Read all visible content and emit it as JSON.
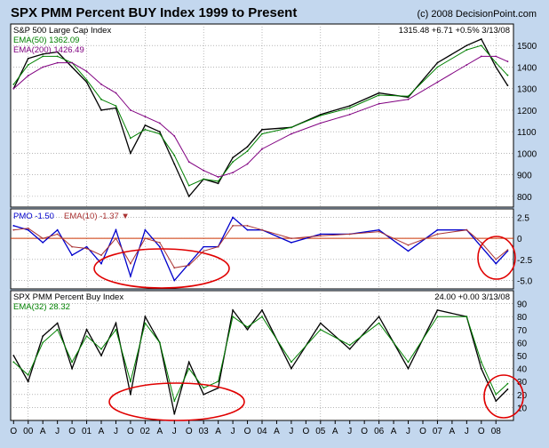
{
  "header": {
    "title": "SPX PMM Percent BUY Index 1999 to Present",
    "copyright": "(c) 2008 DecisionPoint.com"
  },
  "x_axis_labels": [
    "O",
    "00",
    "A",
    "J",
    "O",
    "01",
    "A",
    "J",
    "O",
    "02",
    "A",
    "J",
    "O",
    "03",
    "A",
    "J",
    "O",
    "04",
    "A",
    "J",
    "O",
    "05",
    "A",
    "J",
    "O",
    "06",
    "A",
    "J",
    "O",
    "07",
    "A",
    "J",
    "O",
    "08"
  ],
  "colors": {
    "background": "#c3d7ee",
    "panel": "#ffffff",
    "grid": "#8c8c8c",
    "price": "#000000",
    "ema_short": "#008000",
    "ema_long": "#800080",
    "pmo": "#0000cc",
    "ema_pmo": "#aa3333",
    "zero_line": "#cc3300",
    "circle": "#e00000"
  },
  "chart_data": [
    {
      "type": "line",
      "title": "S&P 500 Large Cap Index",
      "readout": "1315.48  +6.71  +0.5%  3/13/08",
      "ylim": [
        750,
        1600
      ],
      "y_ticks": [
        800,
        900,
        1000,
        1100,
        1200,
        1300,
        1400,
        1500
      ],
      "x": [
        1999.75,
        2000.0,
        2000.25,
        2000.5,
        2000.75,
        2001.0,
        2001.25,
        2001.5,
        2001.75,
        2002.0,
        2002.25,
        2002.5,
        2002.75,
        2003.0,
        2003.25,
        2003.5,
        2003.75,
        2004.0,
        2004.5,
        2005.0,
        2005.5,
        2006.0,
        2006.5,
        2007.0,
        2007.5,
        2007.75,
        2008.0,
        2008.2
      ],
      "series": [
        {
          "name": "",
          "values": [
            1300,
            1440,
            1460,
            1470,
            1400,
            1330,
            1200,
            1210,
            1000,
            1130,
            1100,
            950,
            800,
            880,
            860,
            980,
            1030,
            1110,
            1120,
            1180,
            1220,
            1280,
            1260,
            1420,
            1500,
            1530,
            1400,
            1315
          ]
        },
        {
          "name": "EMA(50) 1362.09",
          "values": [
            1320,
            1410,
            1450,
            1450,
            1420,
            1340,
            1250,
            1220,
            1070,
            1110,
            1090,
            990,
            850,
            880,
            870,
            960,
            1010,
            1090,
            1120,
            1175,
            1210,
            1270,
            1265,
            1400,
            1480,
            1500,
            1420,
            1362
          ]
        },
        {
          "name": "EMA(200) 1426.49",
          "values": [
            1300,
            1360,
            1400,
            1420,
            1420,
            1380,
            1320,
            1280,
            1200,
            1170,
            1140,
            1080,
            960,
            920,
            890,
            910,
            950,
            1020,
            1090,
            1140,
            1180,
            1230,
            1250,
            1330,
            1410,
            1450,
            1450,
            1426
          ]
        }
      ]
    },
    {
      "type": "line",
      "ylim": [
        -6,
        3.5
      ],
      "y_ticks": [
        2.5,
        0,
        -2.5,
        -5.0
      ],
      "y_tick_labels": [
        "2.5",
        "0",
        "-2.5",
        "-5.0"
      ],
      "x": [
        1999.75,
        2000.0,
        2000.25,
        2000.5,
        2000.75,
        2001.0,
        2001.25,
        2001.5,
        2001.75,
        2002.0,
        2002.25,
        2002.5,
        2002.75,
        2003.0,
        2003.25,
        2003.5,
        2003.75,
        2004.0,
        2004.5,
        2005.0,
        2005.5,
        2006.0,
        2006.5,
        2007.0,
        2007.5,
        2007.75,
        2008.0,
        2008.2
      ],
      "series": [
        {
          "name": "PMO -1.50",
          "values": [
            1.5,
            1.0,
            -0.5,
            1.0,
            -2.0,
            -1.0,
            -3.0,
            1.0,
            -4.5,
            1.0,
            -1.0,
            -5.0,
            -3.0,
            -1.0,
            -1.0,
            2.5,
            1.0,
            1.0,
            -0.5,
            0.5,
            0.5,
            1.0,
            -1.5,
            1.0,
            1.0,
            -1.0,
            -3.0,
            -1.5
          ]
        },
        {
          "name": "EMA(10) -1.37",
          "values": [
            1.0,
            1.2,
            0.0,
            0.5,
            -1.0,
            -1.2,
            -2.0,
            0.0,
            -3.0,
            0.0,
            -0.5,
            -3.5,
            -3.2,
            -1.5,
            -1.0,
            1.5,
            1.5,
            1.0,
            0.0,
            0.3,
            0.5,
            0.8,
            -0.8,
            0.5,
            1.0,
            -0.5,
            -2.5,
            -1.37
          ]
        }
      ],
      "reference_line": 0
    },
    {
      "type": "line",
      "title": "SPX PMM Percent Buy Index",
      "readout": "24.00  +0.00  3/13/08",
      "ylim": [
        0,
        100
      ],
      "y_ticks": [
        10,
        20,
        30,
        40,
        50,
        60,
        70,
        80,
        90
      ],
      "x": [
        1999.75,
        2000.0,
        2000.25,
        2000.5,
        2000.75,
        2001.0,
        2001.25,
        2001.5,
        2001.75,
        2002.0,
        2002.25,
        2002.5,
        2002.75,
        2003.0,
        2003.25,
        2003.5,
        2003.75,
        2004.0,
        2004.5,
        2005.0,
        2005.5,
        2006.0,
        2006.5,
        2007.0,
        2007.5,
        2007.75,
        2008.0,
        2008.2
      ],
      "series": [
        {
          "name": "",
          "values": [
            50,
            30,
            65,
            75,
            40,
            70,
            50,
            75,
            20,
            80,
            60,
            5,
            45,
            20,
            25,
            85,
            70,
            85,
            40,
            75,
            55,
            80,
            40,
            85,
            80,
            40,
            15,
            24
          ]
        },
        {
          "name": "EMA(32) 28.32",
          "values": [
            45,
            35,
            60,
            70,
            45,
            65,
            55,
            70,
            30,
            75,
            60,
            15,
            40,
            25,
            30,
            80,
            72,
            80,
            45,
            70,
            58,
            75,
            45,
            80,
            80,
            45,
            20,
            28.32
          ]
        }
      ]
    }
  ]
}
